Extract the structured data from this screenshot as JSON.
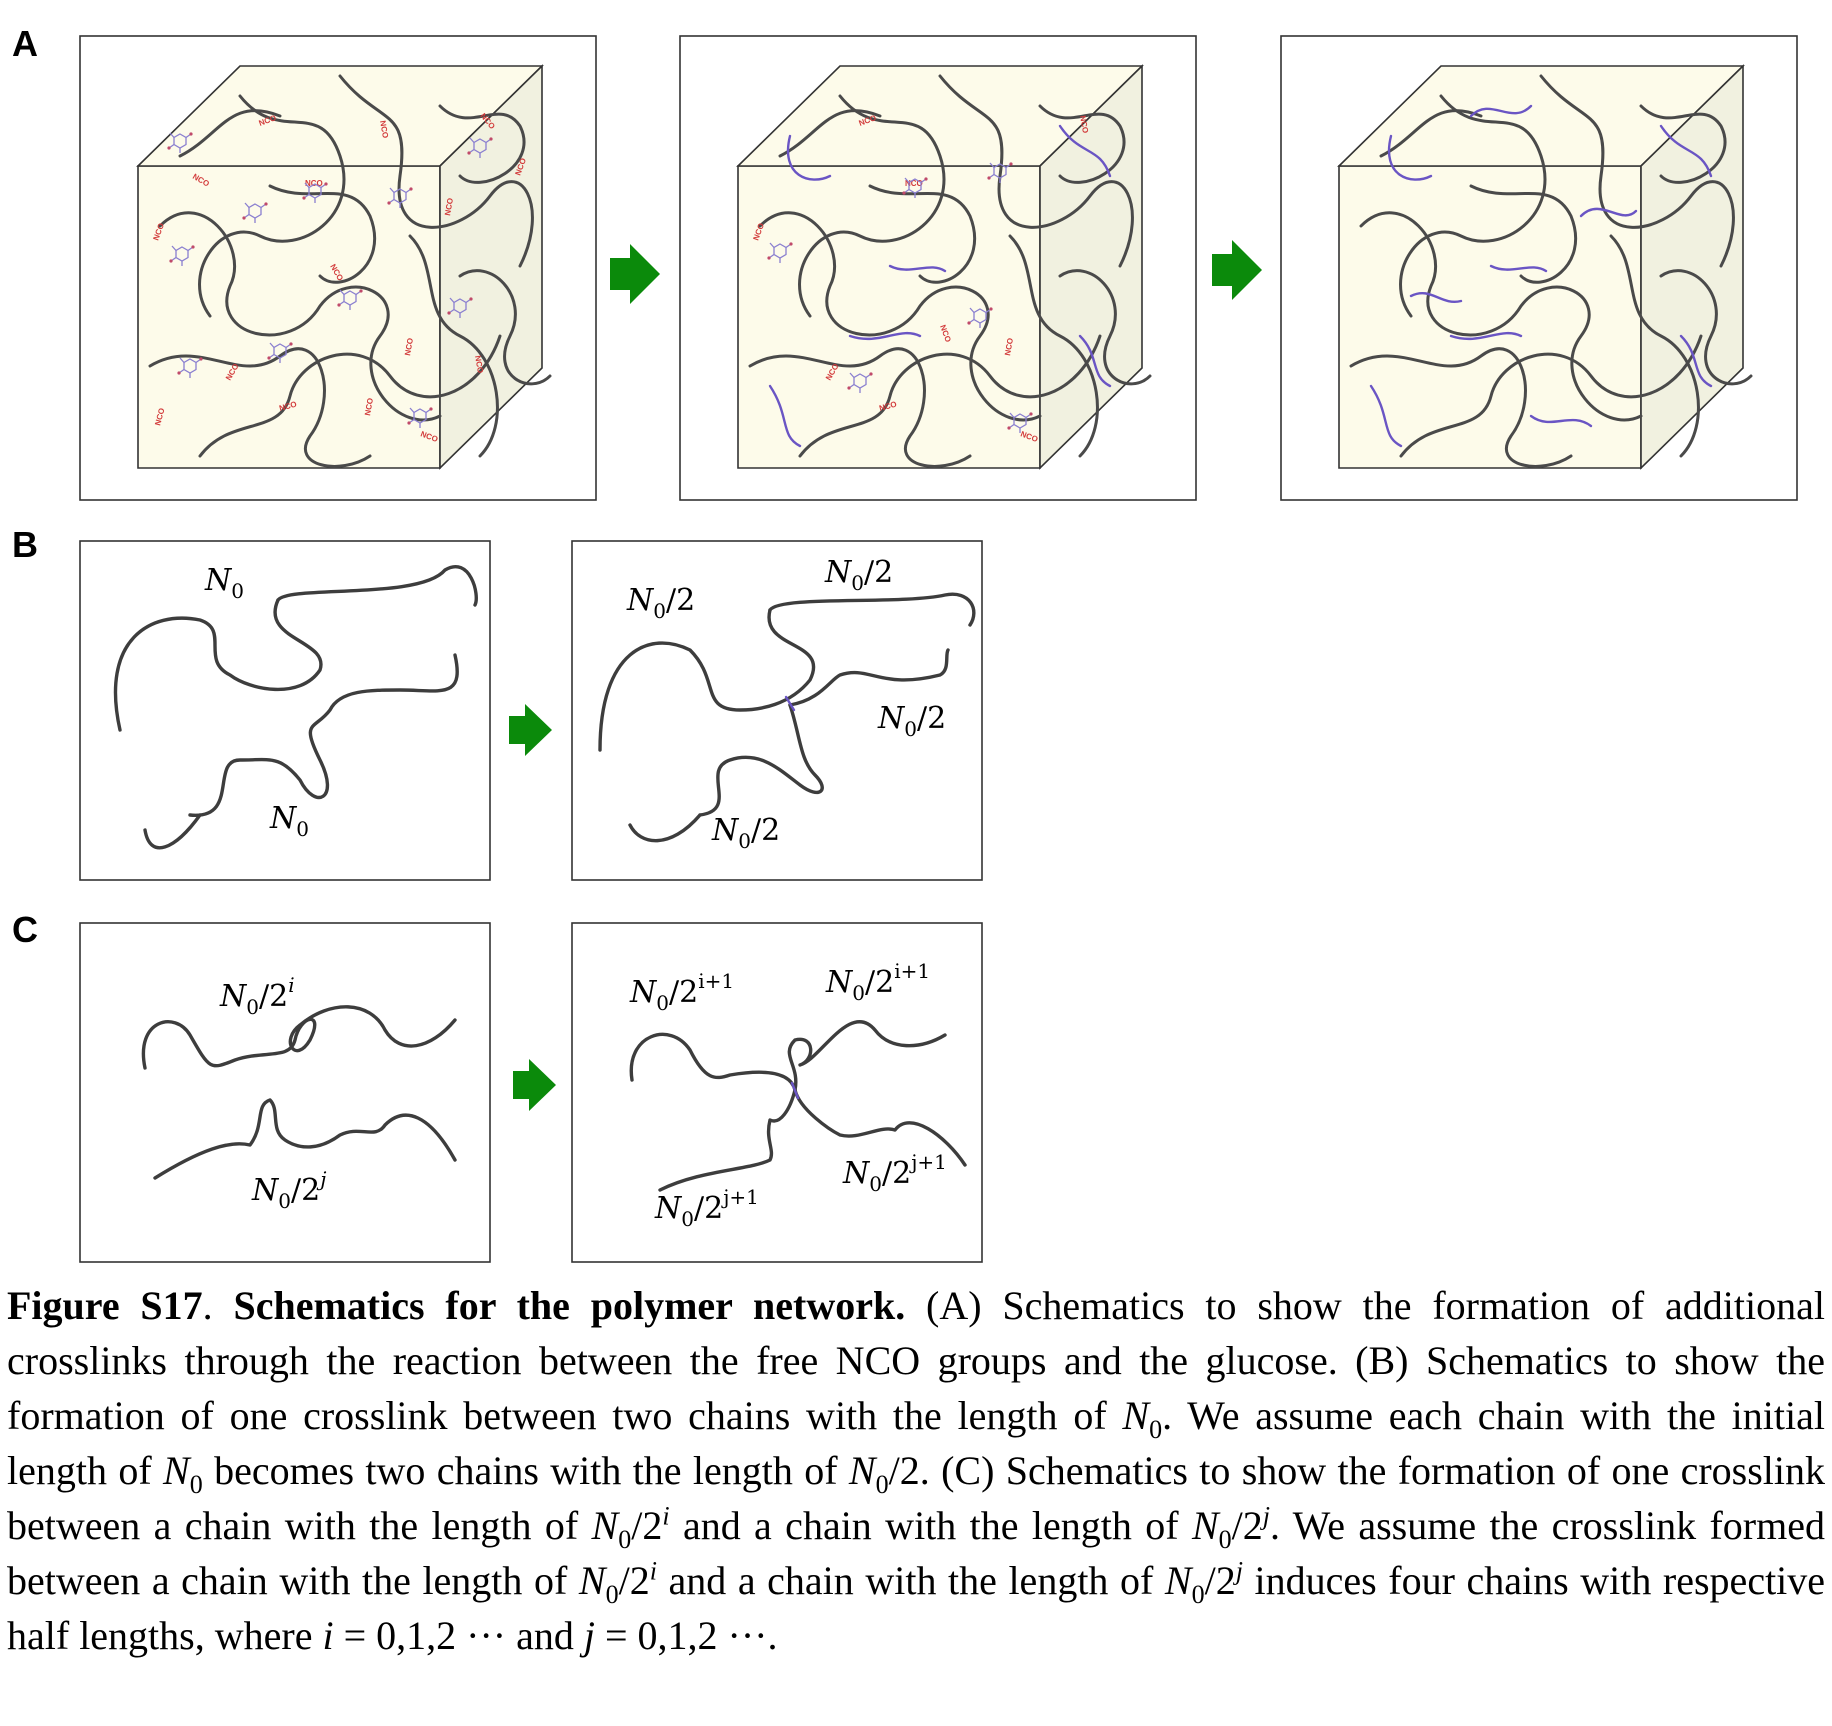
{
  "panels": {
    "a": {
      "letter": "A"
    },
    "b": {
      "letter": "B",
      "left": {
        "top_label": "N",
        "bottom_label": "N"
      },
      "right": {
        "labels": [
          "N/2",
          "N/2",
          "N/2",
          "N/2"
        ]
      }
    },
    "c": {
      "letter": "C",
      "left": {
        "top_label": "N/2^i",
        "bottom_label": "N/2^j"
      },
      "right": {
        "labels": [
          "N/2^(i+1)",
          "N/2^(i+1)",
          "N/2^(j+1)",
          "N/2^(j+1)"
        ]
      }
    }
  },
  "nco_label": "NCO",
  "colors": {
    "arrow": "#0b8a0b",
    "cube_fill": "#fdfbea",
    "crosslink": "#6a55c4",
    "nco": "#d23a3a"
  },
  "caption": {
    "figure_label": "Figure S17",
    "title": "Schematics for the polymer network.",
    "text_a": "(A) Schematics to show the formation of additional crosslinks through the reaction between the free NCO groups and the glucose. (B) Schematics to show the formation of one crosslink between two chains with the length of",
    "text_b": ". We assume each chain with the initial length of",
    "text_c": "becomes two chains with the length of",
    "text_d": ". (C) Schematics to show the formation of one crosslink between a chain with the length of",
    "text_e": "and a chain with the length of",
    "text_f": ". We assume the crosslink formed between a chain with the length of",
    "text_g": "and a chain with the length of",
    "text_h": "induces four chains with respective half lengths, where",
    "text_i": "= 0,1,2 ··· and",
    "text_j": "= 0,1,2 ···."
  }
}
